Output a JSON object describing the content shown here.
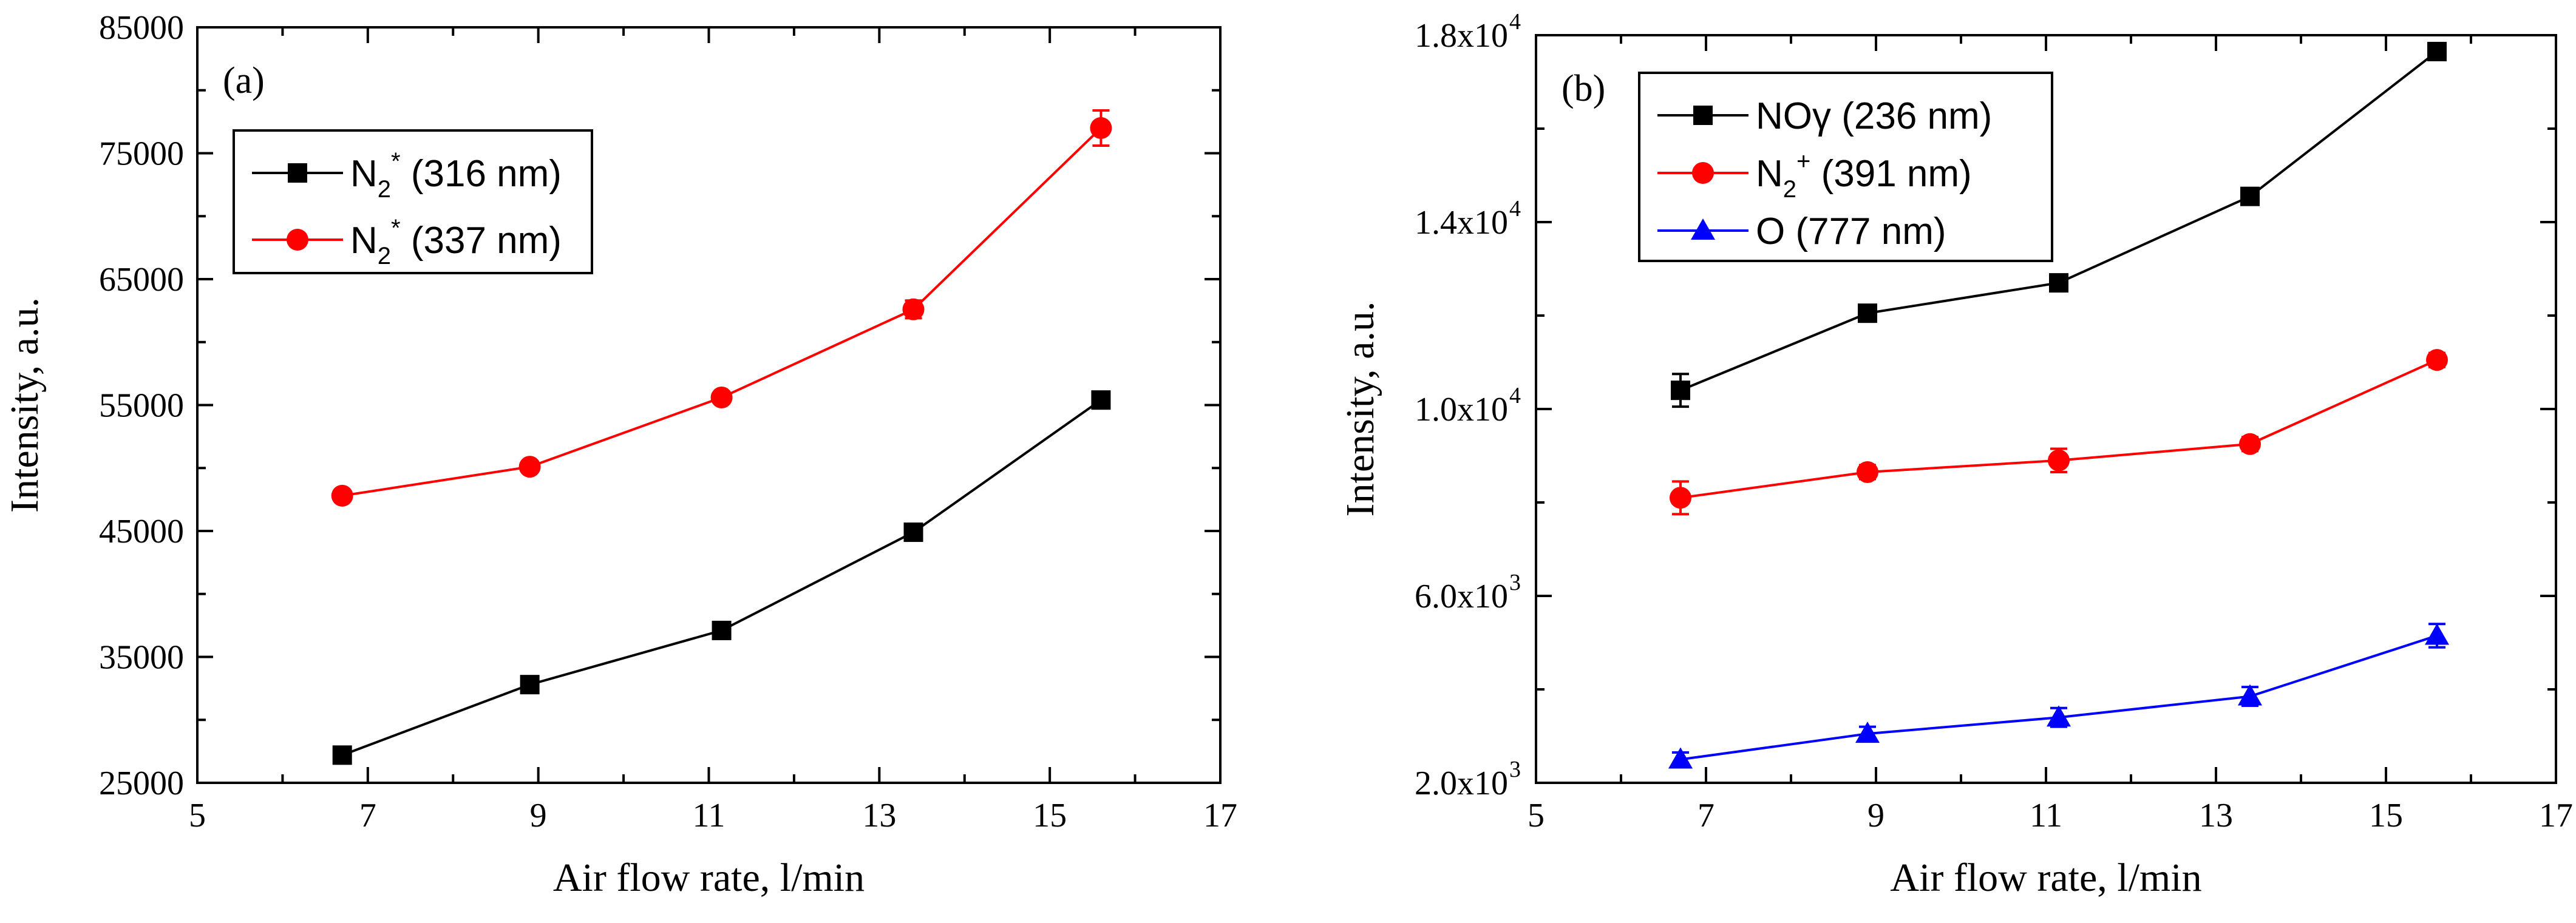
{
  "chart_data": [
    {
      "panel": "(a)",
      "type": "line",
      "xlabel": "Air flow rate, l/min",
      "ylabel": "Intensity, a.u.",
      "xlim": [
        5,
        17
      ],
      "ylim": [
        25000,
        85000
      ],
      "x_ticks": [
        5,
        7,
        9,
        11,
        13,
        15,
        17
      ],
      "x_tick_labels": [
        "5",
        "7",
        "9",
        "11",
        "13",
        "15",
        "17"
      ],
      "y_ticks": [
        25000,
        35000,
        45000,
        55000,
        65000,
        75000,
        85000
      ],
      "y_tick_labels": [
        "25000",
        "35000",
        "45000",
        "55000",
        "65000",
        "75000",
        "85000"
      ],
      "legend_position": "top-left",
      "series": [
        {
          "legend_main": "N",
          "legend_sub": "2",
          "legend_sup": "*",
          "legend_rest": " (316 nm)",
          "color": "#000000",
          "marker": "square",
          "x": [
            6.7,
            8.9,
            11.15,
            13.4,
            15.6
          ],
          "values": [
            27200,
            32800,
            37100,
            44900,
            55400
          ],
          "errors": [
            300,
            300,
            300,
            300,
            300
          ]
        },
        {
          "legend_main": "N",
          "legend_sub": "2",
          "legend_sup": "*",
          "legend_rest": " (337 nm)",
          "color": "#ff0000",
          "marker": "circle",
          "x": [
            6.7,
            8.9,
            11.15,
            13.4,
            15.6
          ],
          "values": [
            47800,
            50100,
            55600,
            62600,
            77000
          ],
          "errors": [
            300,
            300,
            300,
            700,
            1400
          ]
        }
      ]
    },
    {
      "panel": "(b)",
      "type": "line",
      "xlabel": "Air flow rate, l/min",
      "ylabel": "Intensity, a.u.",
      "xlim": [
        5,
        17
      ],
      "ylim": [
        2000,
        18000
      ],
      "x_ticks": [
        5,
        7,
        9,
        11,
        13,
        15,
        17
      ],
      "x_tick_labels": [
        "5",
        "7",
        "9",
        "11",
        "13",
        "15",
        "17"
      ],
      "y_ticks": [
        2000,
        6000,
        10000,
        14000,
        18000
      ],
      "y_tick_mantissas": [
        "2.0x10",
        "6.0x10",
        "1.0x10",
        "1.4x10",
        "1.8x10"
      ],
      "y_tick_exponents": [
        "3",
        "3",
        "4",
        "4",
        "4"
      ],
      "legend_position": "top-left",
      "series": [
        {
          "legend_main": "NOγ (236 nm)",
          "legend_sub": "",
          "legend_sup": "",
          "legend_rest": "",
          "color": "#000000",
          "marker": "square",
          "x": [
            6.7,
            8.9,
            11.15,
            13.4,
            15.6
          ],
          "values": [
            10400,
            12050,
            12700,
            14550,
            17650
          ],
          "errors": [
            350,
            150,
            150,
            150,
            150
          ]
        },
        {
          "legend_main": "N",
          "legend_sub": "2",
          "legend_sup": "+",
          "legend_rest": " (391 nm)",
          "color": "#ff0000",
          "marker": "circle",
          "x": [
            6.7,
            8.9,
            11.15,
            13.4,
            15.6
          ],
          "values": [
            8100,
            8650,
            8900,
            9250,
            11050
          ],
          "errors": [
            350,
            150,
            250,
            150,
            150
          ]
        },
        {
          "legend_main": "O (777 nm)",
          "legend_sub": "",
          "legend_sup": "",
          "legend_rest": "",
          "color": "#0000ff",
          "marker": "triangle",
          "x": [
            6.7,
            8.9,
            11.15,
            13.4,
            15.6
          ],
          "values": [
            2500,
            3050,
            3400,
            3850,
            5150
          ],
          "errors": [
            150,
            150,
            200,
            200,
            250
          ]
        }
      ]
    }
  ]
}
